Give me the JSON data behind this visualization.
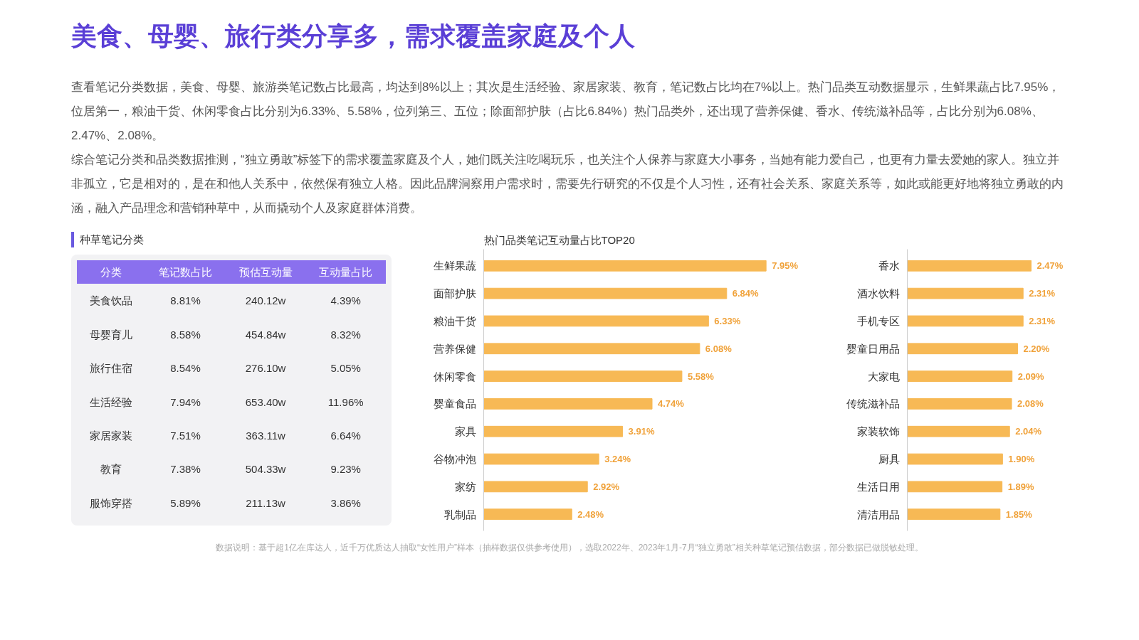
{
  "chart_data": [
    {
      "type": "other",
      "title": "美食、母婴、旅行类分享多，需求覆盖家庭及个人",
      "annotations": [
        "查看笔记分类数据，美食、母婴、旅游类笔记数占比最高，均达到8%以上；其次是生活经验、家居家装、教育，笔记数占比均在7%以上。热门品类互动数据显示，生鲜果蔬占比7.95%，位居第一，粮油干货、休闲零食占比分别为6.33%、5.58%，位列第三、五位；除面部护肤（占比6.84%）热门品类外，还出现了营养保健、香水、传统滋补品等，占比分别为6.08%、2.47%、2.08%。",
        "综合笔记分类和品类数据推测，“独立勇敢”标签下的需求覆盖家庭及个人，她们既关注吃喝玩乐，也关注个人保养与家庭大小事务，当她有能力爱自己，也更有力量去爱她的家人。独立并非孤立，它是相对的，是在和他人关系中，依然保有独立人格。因此品牌洞察用户需求时，需要先行研究的不仅是个人习性，还有社会关系、家庭关系等，如此或能更好地将独立勇敢的内涵，融入产品理念和营销种草中，从而撬动个人及家庭群体消费。"
      ]
    },
    {
      "type": "other",
      "title": "种草笔记分类",
      "categories": [
        "分类",
        "笔记数占比",
        "预估互动量",
        "互动量占比"
      ],
      "y_categories": [
        "美食饮品",
        "母婴育儿",
        "旅行住宿",
        "生活经验",
        "家居家装",
        "教育",
        "服饰穿搭"
      ],
      "cell_labels": [
        [
          "8.81%",
          "240.12w",
          "4.39%"
        ],
        [
          "8.58%",
          "454.84w",
          "8.32%"
        ],
        [
          "8.54%",
          "276.10w",
          "5.05%"
        ],
        [
          "7.94%",
          "653.40w",
          "11.96%"
        ],
        [
          "7.51%",
          "363.11w",
          "6.64%"
        ],
        [
          "7.38%",
          "504.33w",
          "9.23%"
        ],
        [
          "5.89%",
          "211.13w",
          "3.86%"
        ]
      ]
    },
    {
      "type": "bar",
      "orientation": "horizontal",
      "title": "热门品类笔记互动量占比TOP20",
      "categories": [
        "生鲜果蔬",
        "面部护肤",
        "粮油干货",
        "营养保健",
        "休闲零食",
        "婴童食品",
        "家具",
        "谷物冲泡",
        "家纺",
        "乳制品"
      ],
      "tick_labels": "y",
      "series": [
        {
          "color": "#f7b955",
          "values": [
            7.95,
            6.84,
            6.33,
            6.08,
            5.58,
            4.74,
            3.91,
            3.24,
            2.92,
            2.48
          ],
          "value_labels": [
            "7.95%",
            "6.84%",
            "6.33%",
            "6.08%",
            "5.58%",
            "4.74%",
            "3.91%",
            "3.24%",
            "2.92%",
            "2.48%"
          ]
        }
      ]
    },
    {
      "type": "bar",
      "orientation": "horizontal",
      "categories": [
        "香水",
        "酒水饮料",
        "手机专区",
        "婴童日用品",
        "大家电",
        "传统滋补品",
        "家装软饰",
        "厨具",
        "生活日用",
        "清洁用品"
      ],
      "tick_labels": "y",
      "series": [
        {
          "color": "#f7b955",
          "values": [
            2.47,
            2.31,
            2.31,
            2.2,
            2.09,
            2.08,
            2.04,
            1.9,
            1.89,
            1.85
          ],
          "value_labels": [
            "2.47%",
            "2.31%",
            "2.31%",
            "2.20%",
            "2.09%",
            "2.08%",
            "2.04%",
            "1.90%",
            "1.89%",
            "1.85%"
          ]
        }
      ]
    },
    {
      "type": "other",
      "annotations": [
        "数据说明：基于超1亿在库达人，近千万优质达人抽取“女性用户”样本（抽样数据仅供参考使用），选取2022年、2023年1月-7月“独立勇敢”相关种草笔记预估数据，部分数据已做脱敏处理。"
      ]
    }
  ]
}
